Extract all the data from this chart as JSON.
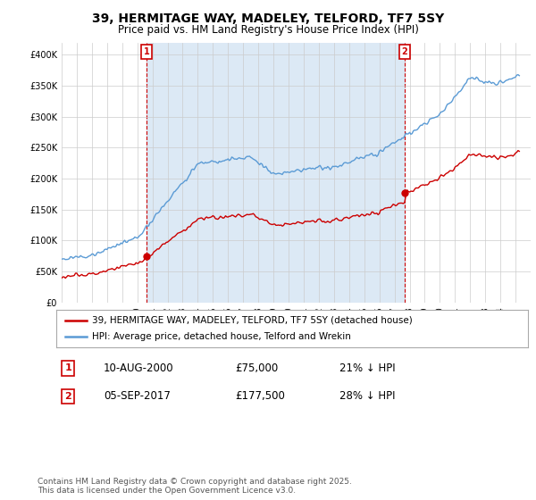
{
  "title": "39, HERMITAGE WAY, MADELEY, TELFORD, TF7 5SY",
  "subtitle": "Price paid vs. HM Land Registry's House Price Index (HPI)",
  "legend_line1": "39, HERMITAGE WAY, MADELEY, TELFORD, TF7 5SY (detached house)",
  "legend_line2": "HPI: Average price, detached house, Telford and Wrekin",
  "annotation1_date": "10-AUG-2000",
  "annotation1_price": "£75,000",
  "annotation1_hpi": "21% ↓ HPI",
  "annotation2_date": "05-SEP-2017",
  "annotation2_price": "£177,500",
  "annotation2_hpi": "28% ↓ HPI",
  "footnote": "Contains HM Land Registry data © Crown copyright and database right 2025.\nThis data is licensed under the Open Government Licence v3.0.",
  "red_color": "#cc0000",
  "blue_color": "#5b9bd5",
  "shade_color": "#dce9f5",
  "grid_color": "#cccccc",
  "background_color": "#ffffff",
  "ann_box_edge_color": "#cc0000",
  "ann_box_face_color": "#ffffff",
  "ann_text_color": "#cc0000",
  "ylim": [
    0,
    420000
  ],
  "yticks": [
    0,
    50000,
    100000,
    150000,
    200000,
    250000,
    300000,
    350000,
    400000
  ],
  "xlim": [
    1995,
    2026
  ],
  "purchase1_year": 2000.61,
  "purchase1_price": 75000,
  "purchase2_year": 2017.67,
  "purchase2_price": 177500
}
